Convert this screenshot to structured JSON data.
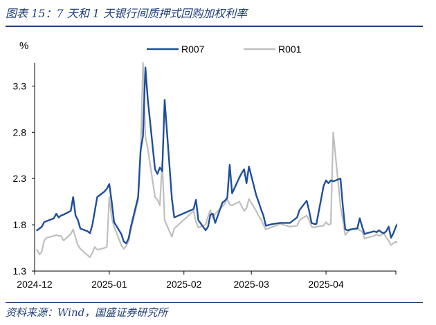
{
  "figure_title": "图表 15：7 天和 1 天银行间质押式回购加权利率",
  "source": "资料来源：Wind，国盛证券研究所",
  "colors": {
    "R007": "#1f4e9b",
    "R001": "#bfbfbf",
    "heading": "#1f3d7a"
  },
  "chart_data": {
    "type": "line",
    "title": "",
    "xlabel": "",
    "ylabel": "%",
    "ylim": [
      1.3,
      3.55
    ],
    "y_ticks": [
      1.3,
      1.8,
      2.3,
      2.8,
      3.3
    ],
    "y_tick_labels": [
      "1.3",
      "1.8",
      "2.3",
      "2.8",
      "3.3"
    ],
    "x_ticks": [
      "2024-12",
      "2025-01",
      "2025-02",
      "2025-03",
      "2025-04"
    ],
    "x_tick_dates": [
      "2024-12-01",
      "2025-01-01",
      "2025-02-01",
      "2025-03-01",
      "2025-04-01"
    ],
    "xlim": [
      "2024-12-01",
      "2025-04-30"
    ],
    "grid": false,
    "legend_position": "top-center",
    "series": [
      {
        "name": "R007",
        "color": "#1f4e9b",
        "points": [
          [
            "2024-12-02",
            1.74
          ],
          [
            "2024-12-03",
            1.76
          ],
          [
            "2024-12-04",
            1.78
          ],
          [
            "2024-12-05",
            1.83
          ],
          [
            "2024-12-06",
            1.84
          ],
          [
            "2024-12-09",
            1.87
          ],
          [
            "2024-12-10",
            1.92
          ],
          [
            "2024-12-11",
            1.88
          ],
          [
            "2024-12-12",
            1.9
          ],
          [
            "2024-12-13",
            1.91
          ],
          [
            "2024-12-16",
            1.95
          ],
          [
            "2024-12-17",
            2.1
          ],
          [
            "2024-12-18",
            1.9
          ],
          [
            "2024-12-19",
            1.85
          ],
          [
            "2024-12-20",
            1.76
          ],
          [
            "2024-12-23",
            1.73
          ],
          [
            "2024-12-24",
            1.71
          ],
          [
            "2024-12-25",
            1.8
          ],
          [
            "2024-12-26",
            1.95
          ],
          [
            "2024-12-27",
            2.1
          ],
          [
            "2024-12-30",
            2.16
          ],
          [
            "2024-12-31",
            2.19
          ],
          [
            "2025-01-01",
            2.24
          ],
          [
            "2025-01-02",
            2.05
          ],
          [
            "2025-01-03",
            1.83
          ],
          [
            "2025-01-06",
            1.7
          ],
          [
            "2025-01-07",
            1.62
          ],
          [
            "2025-01-08",
            1.6
          ],
          [
            "2025-01-09",
            1.65
          ],
          [
            "2025-01-10",
            1.78
          ],
          [
            "2025-01-13",
            2.1
          ],
          [
            "2025-01-14",
            2.6
          ],
          [
            "2025-01-15",
            2.76
          ],
          [
            "2025-01-16",
            3.5
          ],
          [
            "2025-01-17",
            3.15
          ],
          [
            "2025-01-20",
            2.4
          ],
          [
            "2025-01-21",
            2.35
          ],
          [
            "2025-01-22",
            2.42
          ],
          [
            "2025-01-23",
            2.38
          ],
          [
            "2025-01-24",
            3.15
          ],
          [
            "2025-01-27",
            2.08
          ],
          [
            "2025-01-28",
            1.88
          ],
          [
            "2025-02-05",
            1.97
          ],
          [
            "2025-02-06",
            2.07
          ],
          [
            "2025-02-07",
            1.85
          ],
          [
            "2025-02-10",
            1.74
          ],
          [
            "2025-02-11",
            1.78
          ],
          [
            "2025-02-12",
            1.91
          ],
          [
            "2025-02-13",
            1.92
          ],
          [
            "2025-02-14",
            1.82
          ],
          [
            "2025-02-17",
            2.04
          ],
          [
            "2025-02-18",
            2.06
          ],
          [
            "2025-02-19",
            2.09
          ],
          [
            "2025-02-20",
            2.45
          ],
          [
            "2025-02-21",
            2.14
          ],
          [
            "2025-02-24",
            2.31
          ],
          [
            "2025-02-25",
            2.36
          ],
          [
            "2025-02-26",
            2.4
          ],
          [
            "2025-02-27",
            2.25
          ],
          [
            "2025-02-28",
            2.43
          ],
          [
            "2025-03-03",
            2.12
          ],
          [
            "2025-03-04",
            2.05
          ],
          [
            "2025-03-05",
            1.97
          ],
          [
            "2025-03-06",
            1.9
          ],
          [
            "2025-03-07",
            1.79
          ],
          [
            "2025-03-10",
            1.81
          ],
          [
            "2025-03-13",
            1.82
          ],
          [
            "2025-03-17",
            1.82
          ],
          [
            "2025-03-20",
            1.88
          ],
          [
            "2025-03-21",
            1.96
          ],
          [
            "2025-03-24",
            2.06
          ],
          [
            "2025-03-25",
            1.95
          ],
          [
            "2025-03-26",
            1.82
          ],
          [
            "2025-03-27",
            1.81
          ],
          [
            "2025-03-28",
            1.81
          ],
          [
            "2025-03-31",
            2.22
          ],
          [
            "2025-04-01",
            2.28
          ],
          [
            "2025-04-02",
            2.25
          ],
          [
            "2025-04-03",
            2.28
          ],
          [
            "2025-04-04",
            2.27
          ],
          [
            "2025-04-07",
            2.3
          ],
          [
            "2025-04-08",
            2.0
          ],
          [
            "2025-04-09",
            1.75
          ],
          [
            "2025-04-10",
            1.74
          ],
          [
            "2025-04-11",
            1.75
          ],
          [
            "2025-04-14",
            1.76
          ],
          [
            "2025-04-15",
            1.87
          ],
          [
            "2025-04-16",
            1.78
          ],
          [
            "2025-04-17",
            1.7
          ],
          [
            "2025-04-18",
            1.71
          ],
          [
            "2025-04-21",
            1.73
          ],
          [
            "2025-04-22",
            1.72
          ],
          [
            "2025-04-23",
            1.74
          ],
          [
            "2025-04-24",
            1.72
          ],
          [
            "2025-04-25",
            1.71
          ],
          [
            "2025-04-26",
            1.73
          ],
          [
            "2025-04-27",
            1.78
          ],
          [
            "2025-04-28",
            1.66
          ],
          [
            "2025-04-29",
            1.71
          ],
          [
            "2025-04-30",
            1.78
          ],
          [
            "2025-05-02",
            1.86
          ]
        ]
      },
      {
        "name": "R001",
        "color": "#bfbfbf",
        "points": [
          [
            "2024-12-02",
            1.53
          ],
          [
            "2024-12-03",
            1.48
          ],
          [
            "2024-12-04",
            1.51
          ],
          [
            "2024-12-05",
            1.63
          ],
          [
            "2024-12-06",
            1.66
          ],
          [
            "2024-12-09",
            1.68
          ],
          [
            "2024-12-10",
            1.69
          ],
          [
            "2024-12-11",
            1.68
          ],
          [
            "2024-12-12",
            1.68
          ],
          [
            "2024-12-13",
            1.63
          ],
          [
            "2024-12-16",
            1.7
          ],
          [
            "2024-12-17",
            1.75
          ],
          [
            "2024-12-18",
            1.66
          ],
          [
            "2024-12-19",
            1.58
          ],
          [
            "2024-12-20",
            1.54
          ],
          [
            "2024-12-23",
            1.47
          ],
          [
            "2024-12-24",
            1.45
          ],
          [
            "2024-12-25",
            1.5
          ],
          [
            "2024-12-26",
            1.56
          ],
          [
            "2024-12-27",
            1.53
          ],
          [
            "2024-12-30",
            1.55
          ],
          [
            "2024-12-31",
            1.56
          ],
          [
            "2025-01-01",
            2.1
          ],
          [
            "2025-01-02",
            1.88
          ],
          [
            "2025-01-03",
            1.78
          ],
          [
            "2025-01-06",
            1.58
          ],
          [
            "2025-01-07",
            1.54
          ],
          [
            "2025-01-08",
            1.57
          ],
          [
            "2025-01-09",
            1.62
          ],
          [
            "2025-01-10",
            1.75
          ],
          [
            "2025-01-13",
            2.07
          ],
          [
            "2025-01-14",
            2.55
          ],
          [
            "2025-01-15",
            3.55
          ],
          [
            "2025-01-16",
            2.75
          ],
          [
            "2025-01-17",
            2.62
          ],
          [
            "2025-01-20",
            2.1
          ],
          [
            "2025-01-21",
            2.07
          ],
          [
            "2025-01-22",
            2.01
          ],
          [
            "2025-01-23",
            2.48
          ],
          [
            "2025-01-24",
            1.85
          ],
          [
            "2025-01-27",
            1.67
          ],
          [
            "2025-01-28",
            1.76
          ],
          [
            "2025-02-05",
            1.95
          ],
          [
            "2025-02-06",
            1.83
          ],
          [
            "2025-02-07",
            1.77
          ],
          [
            "2025-02-10",
            1.8
          ],
          [
            "2025-02-11",
            1.89
          ],
          [
            "2025-02-12",
            1.96
          ],
          [
            "2025-02-13",
            1.87
          ],
          [
            "2025-02-14",
            1.92
          ],
          [
            "2025-02-17",
            2.0
          ],
          [
            "2025-02-18",
            2.03
          ],
          [
            "2025-02-19",
            2.08
          ],
          [
            "2025-02-20",
            2.02
          ],
          [
            "2025-02-21",
            2.01
          ],
          [
            "2025-02-24",
            2.05
          ],
          [
            "2025-02-25",
            2.0
          ],
          [
            "2025-02-26",
            1.95
          ],
          [
            "2025-02-27",
            1.98
          ],
          [
            "2025-02-28",
            2.08
          ],
          [
            "2025-03-03",
            1.95
          ],
          [
            "2025-03-04",
            1.9
          ],
          [
            "2025-03-05",
            1.86
          ],
          [
            "2025-03-06",
            1.8
          ],
          [
            "2025-03-07",
            1.75
          ],
          [
            "2025-03-10",
            1.78
          ],
          [
            "2025-03-13",
            1.81
          ],
          [
            "2025-03-17",
            1.78
          ],
          [
            "2025-03-20",
            1.79
          ],
          [
            "2025-03-21",
            1.85
          ],
          [
            "2025-03-24",
            1.9
          ],
          [
            "2025-03-25",
            1.85
          ],
          [
            "2025-03-26",
            1.78
          ],
          [
            "2025-03-27",
            1.77
          ],
          [
            "2025-03-28",
            1.78
          ],
          [
            "2025-03-31",
            1.79
          ],
          [
            "2025-04-01",
            1.83
          ],
          [
            "2025-04-02",
            1.8
          ],
          [
            "2025-04-03",
            1.81
          ],
          [
            "2025-04-04",
            2.8
          ],
          [
            "2025-04-07",
            2.0
          ],
          [
            "2025-04-08",
            1.85
          ],
          [
            "2025-04-09",
            1.69
          ],
          [
            "2025-04-10",
            1.72
          ],
          [
            "2025-04-11",
            1.74
          ],
          [
            "2025-04-14",
            1.77
          ],
          [
            "2025-04-15",
            1.74
          ],
          [
            "2025-04-16",
            1.73
          ],
          [
            "2025-04-17",
            1.65
          ],
          [
            "2025-04-18",
            1.66
          ],
          [
            "2025-04-21",
            1.68
          ],
          [
            "2025-04-22",
            1.7
          ],
          [
            "2025-04-23",
            1.68
          ],
          [
            "2025-04-24",
            1.69
          ],
          [
            "2025-04-25",
            1.71
          ],
          [
            "2025-04-26",
            1.66
          ],
          [
            "2025-04-27",
            1.63
          ],
          [
            "2025-04-28",
            1.58
          ],
          [
            "2025-04-29",
            1.6
          ],
          [
            "2025-04-30",
            1.62
          ],
          [
            "2025-05-01",
            1.59
          ],
          [
            "2025-05-02",
            1.86
          ]
        ]
      }
    ]
  }
}
